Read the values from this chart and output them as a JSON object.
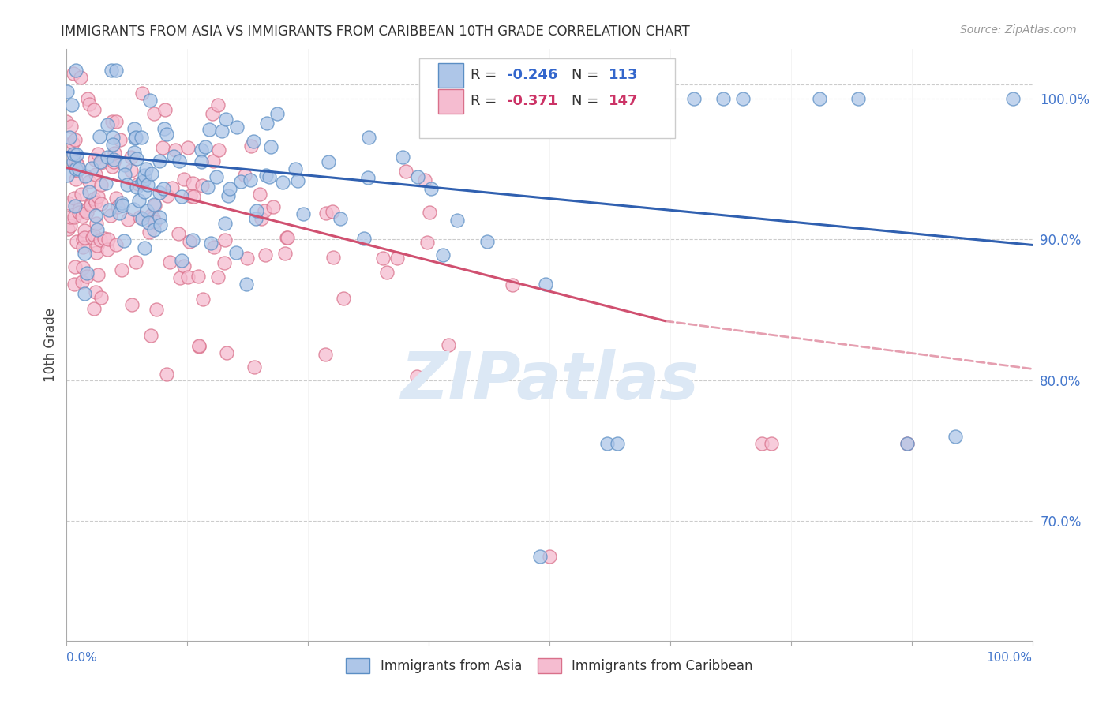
{
  "title": "IMMIGRANTS FROM ASIA VS IMMIGRANTS FROM CARIBBEAN 10TH GRADE CORRELATION CHART",
  "source": "Source: ZipAtlas.com",
  "ylabel": "10th Grade",
  "xlim": [
    0.0,
    1.0
  ],
  "ylim": [
    0.615,
    1.035
  ],
  "ytick_values": [
    0.7,
    0.8,
    0.9,
    1.0
  ],
  "blue_R": -0.246,
  "blue_N": 113,
  "pink_R": -0.371,
  "pink_N": 147,
  "blue_color": "#aec6e8",
  "blue_edge": "#5b8ec4",
  "pink_color": "#f5bcd0",
  "pink_edge": "#d9708a",
  "blue_line_color": "#3060b0",
  "pink_line_color": "#d05070",
  "watermark_color": "#dce8f5",
  "background_color": "#ffffff",
  "grid_color": "#cccccc",
  "legend_label_blue": "Immigrants from Asia",
  "legend_label_pink": "Immigrants from Caribbean",
  "blue_line_x0": 0.0,
  "blue_line_x1": 1.0,
  "blue_line_y0": 0.962,
  "blue_line_y1": 0.896,
  "pink_line_x0": 0.0,
  "pink_line_solid_x1": 0.62,
  "pink_line_x1": 1.0,
  "pink_line_y0": 0.951,
  "pink_line_y_solid_end": 0.842,
  "pink_line_y1": 0.808
}
